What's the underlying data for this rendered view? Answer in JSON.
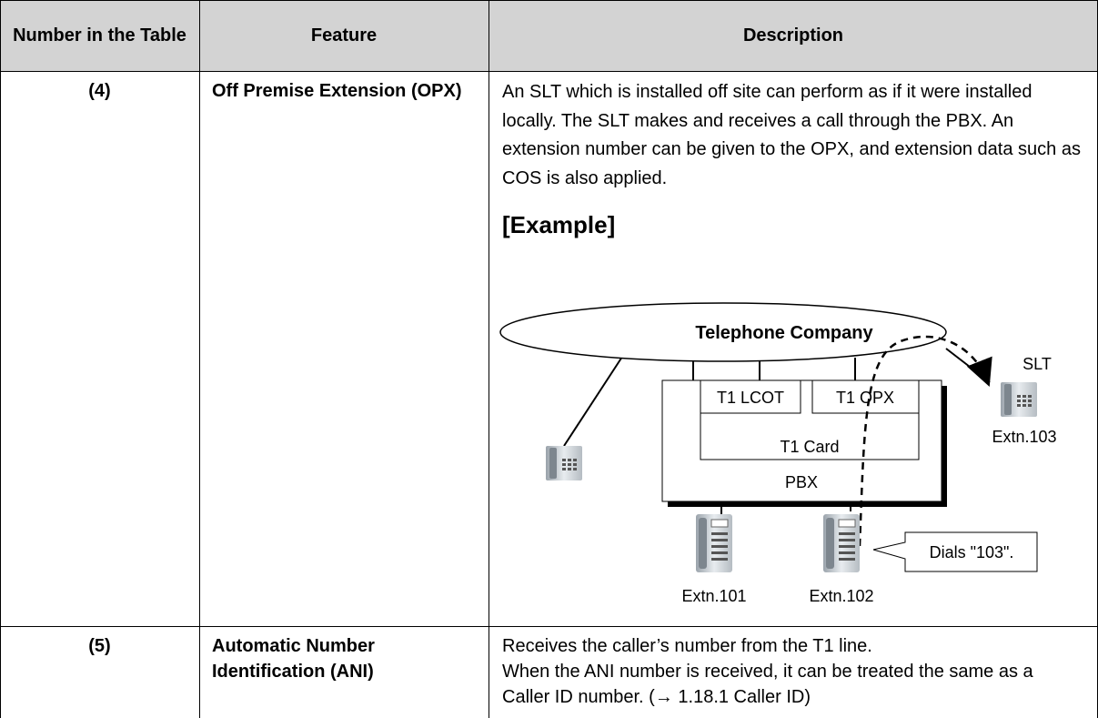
{
  "table": {
    "header": [
      "Number in the Table",
      "Feature",
      "Description"
    ],
    "rows": [
      {
        "number": "(4)",
        "feature": "Off Premise Extension (OPX)",
        "description": "An SLT which is installed off site can perform as if it were installed locally. The SLT makes and receives a call through the PBX. An extension number can be given to the OPX, and extension data such as COS is also applied.",
        "example_heading": "[Example]",
        "diagram": {
          "network": "Telephone Company",
          "slt": "SLT",
          "lcot": "T1 LCOT",
          "opx": "T1 OPX",
          "card": "T1 Card",
          "pbx": "PBX",
          "ext_slt": "Extn.103",
          "ext_a": "Extn.101",
          "ext_b": "Extn.102",
          "callout": "Dials \"103\"."
        }
      },
      {
        "number": "(5)",
        "feature": "Automatic Number Identification (ANI)",
        "description": [
          "Receives the caller’s number from the T1 line.",
          "When the ANI number is received, it can be treated the same as a Caller ID number. (→ 1.18.1  Caller ID)"
        ]
      }
    ]
  }
}
